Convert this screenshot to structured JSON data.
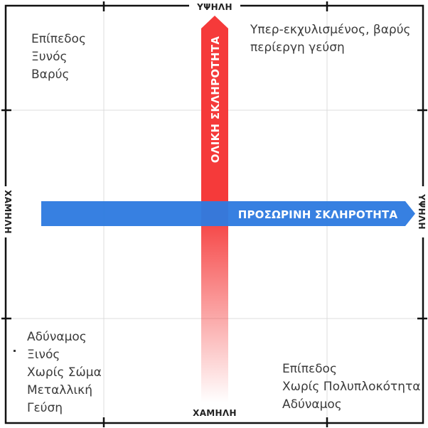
{
  "diagram": {
    "horizontal_axis": {
      "label": "ΠΡΟΣΩΡΙΝΗ ΣΚΛΗΡΟΤΗΤΑ",
      "low_label": "ΧΑΜΗΛΗ",
      "high_label": "ΥΨΗΛΗ",
      "color": "#2f7be0"
    },
    "vertical_axis": {
      "label": "ΟΛΙΚΗ ΣΚΛΗΡΟΤΗΤΑ",
      "low_label": "ΧΑΜΗΛΗ",
      "high_label": "ΥΨΗΛΗ",
      "color": "#f53a3a"
    },
    "quadrants": {
      "top_left": [
        "Επίπεδος",
        "Ξυνός",
        "Βαρύς"
      ],
      "top_right": [
        "Υπερ-εκχυλισμένος, βαρύς",
        "περίεργη γεύση"
      ],
      "bottom_left": [
        "Αδύναμος",
        "Ξινός",
        "Χωρίς Σώμα",
        "Μεταλλική",
        "Γεύση"
      ],
      "bottom_right": [
        "Επίπεδος",
        "Χωρίς Πολυπλοκότητα",
        "Αδύναμος"
      ]
    }
  }
}
